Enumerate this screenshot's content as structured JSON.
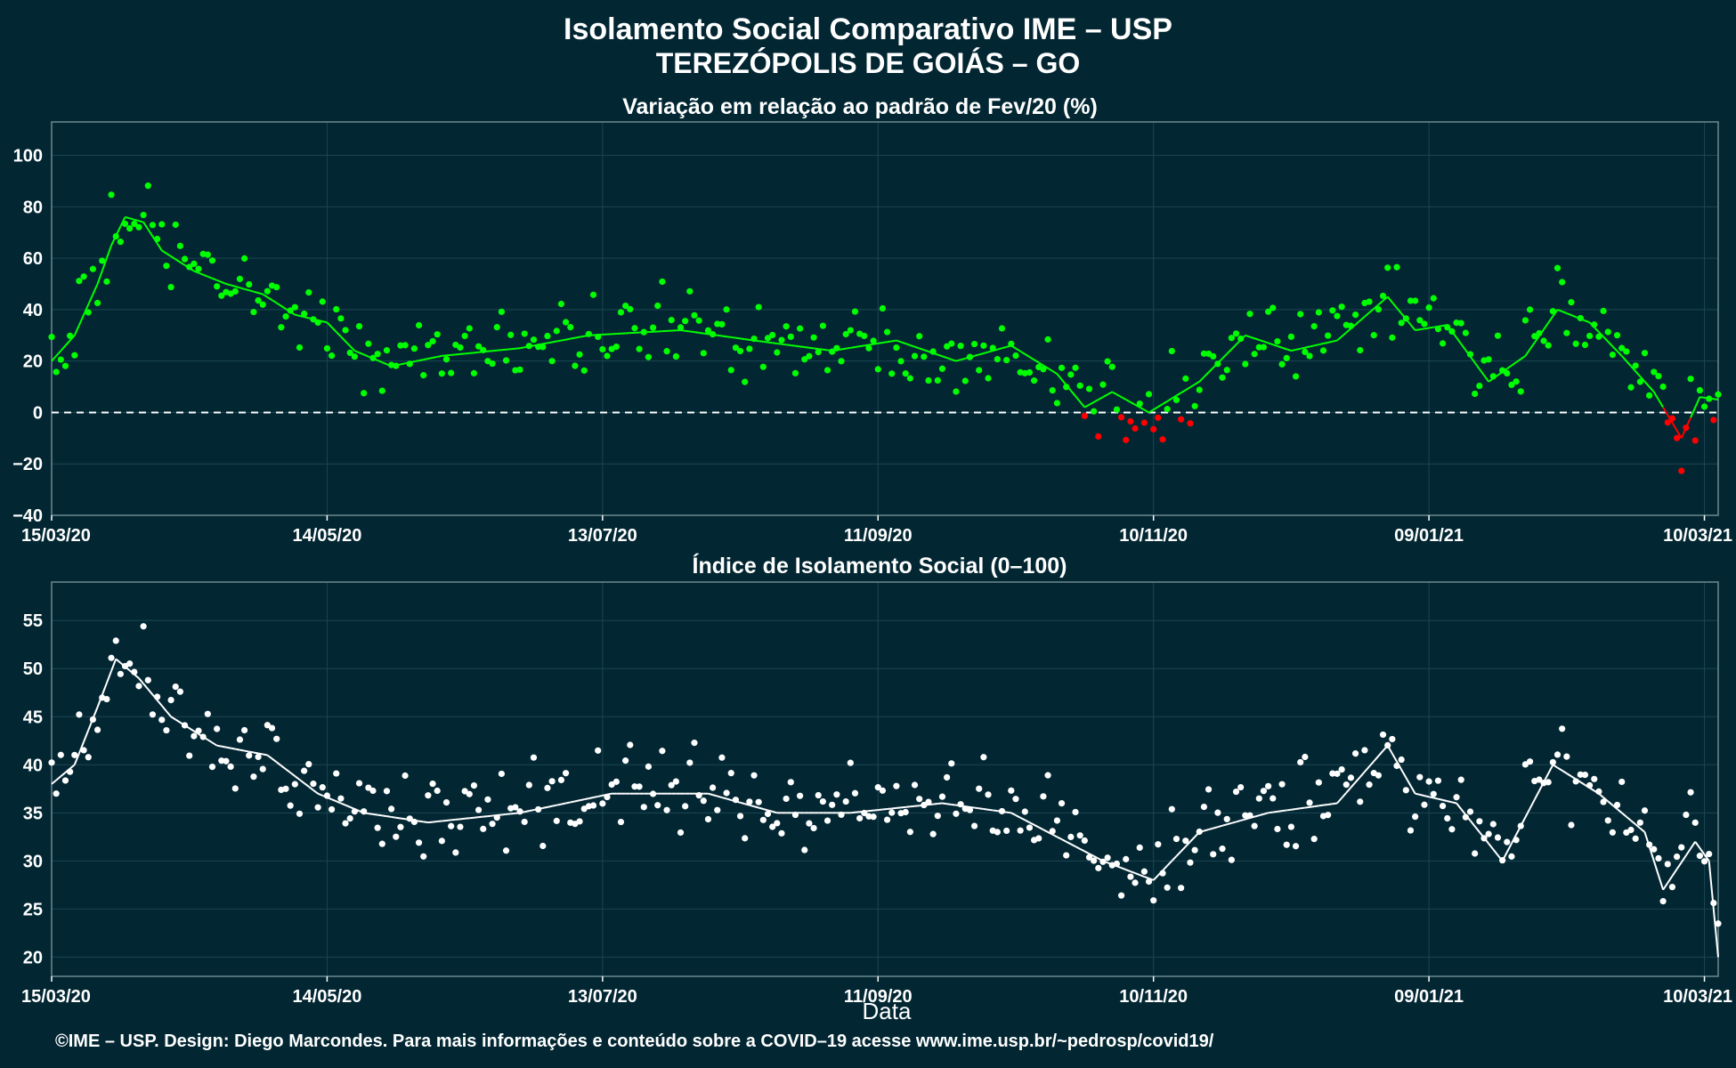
{
  "header": {
    "title": "Isolamento Social Comparativo IME – USP",
    "subtitle": "TEREZÓPOLIS DE GOIÁS – GO"
  },
  "footer": {
    "credit": "©IME – USP. Design: Diego Marcondes. Para mais informações e conteúdo sobre a COVID–19 acesse www.ime.usp.br/~pedrosp/covid19/"
  },
  "colors": {
    "background": "#022733",
    "positive": "#00ff00",
    "negative": "#ff0000",
    "index": "#ffffff",
    "grid": "#1c4552"
  },
  "chart_data": [
    {
      "type": "scatter",
      "title": "Variação em relação ao padrão de Fev/20 (%)",
      "xlabel": "",
      "ylabel": "",
      "x_range": [
        "2020-03-15",
        "2021-03-13"
      ],
      "ylim": [
        -40,
        113
      ],
      "yticks": [
        -40,
        -20,
        0,
        20,
        40,
        60,
        80,
        100
      ],
      "xticks": [
        "15/03/20",
        "14/05/20",
        "13/07/20",
        "11/09/20",
        "10/11/20",
        "09/01/21",
        "10/03/21"
      ],
      "reference_line": 0,
      "grid": true,
      "anchors": [
        [
          "2020-03-15",
          20
        ],
        [
          "2020-03-20",
          30
        ],
        [
          "2020-03-25",
          50
        ],
        [
          "2020-03-28",
          65
        ],
        [
          "2020-03-31",
          76
        ],
        [
          "2020-04-04",
          74
        ],
        [
          "2020-04-08",
          63
        ],
        [
          "2020-04-15",
          55
        ],
        [
          "2020-04-22",
          50
        ],
        [
          "2020-04-30",
          46
        ],
        [
          "2020-05-07",
          38
        ],
        [
          "2020-05-14",
          35
        ],
        [
          "2020-05-20",
          24
        ],
        [
          "2020-05-28",
          18
        ],
        [
          "2020-06-08",
          22
        ],
        [
          "2020-06-25",
          25
        ],
        [
          "2020-07-10",
          30
        ],
        [
          "2020-07-30",
          32
        ],
        [
          "2020-08-15",
          28
        ],
        [
          "2020-09-01",
          24
        ],
        [
          "2020-09-15",
          28
        ],
        [
          "2020-09-28",
          20
        ],
        [
          "2020-10-10",
          26
        ],
        [
          "2020-10-20",
          15
        ],
        [
          "2020-10-26",
          2
        ],
        [
          "2020-11-01",
          8
        ],
        [
          "2020-11-09",
          0
        ],
        [
          "2020-11-20",
          12
        ],
        [
          "2020-11-30",
          30
        ],
        [
          "2020-12-10",
          24
        ],
        [
          "2020-12-20",
          28
        ],
        [
          "2020-12-31",
          45
        ],
        [
          "2021-01-06",
          32
        ],
        [
          "2021-01-13",
          34
        ],
        [
          "2021-01-22",
          12
        ],
        [
          "2021-01-30",
          22
        ],
        [
          "2021-02-06",
          40
        ],
        [
          "2021-02-13",
          35
        ],
        [
          "2021-02-20",
          22
        ],
        [
          "2021-02-27",
          8
        ],
        [
          "2021-03-05",
          -10
        ],
        [
          "2021-03-09",
          6
        ],
        [
          "2021-03-13",
          5
        ]
      ],
      "spread": 20,
      "series": [
        {
          "name": "",
          "color": "#00ff00",
          "rule": "value >= 0"
        },
        {
          "name": "",
          "color": "#ff0000",
          "rule": "value < 0"
        }
      ]
    },
    {
      "type": "scatter",
      "title": "Índice de Isolamento Social (0–100)",
      "xlabel": "Data",
      "ylabel": "",
      "x_range": [
        "2020-03-15",
        "2021-03-13"
      ],
      "ylim": [
        18,
        59
      ],
      "yticks": [
        20,
        25,
        30,
        35,
        40,
        45,
        50,
        55
      ],
      "xticks": [
        "15/03/20",
        "14/05/20",
        "13/07/20",
        "11/09/20",
        "10/11/20",
        "09/01/21",
        "10/03/21"
      ],
      "grid": true,
      "anchors": [
        [
          "2020-03-15",
          38
        ],
        [
          "2020-03-20",
          40
        ],
        [
          "2020-03-25",
          46
        ],
        [
          "2020-03-29",
          51
        ],
        [
          "2020-04-03",
          49
        ],
        [
          "2020-04-10",
          45
        ],
        [
          "2020-04-20",
          42
        ],
        [
          "2020-05-01",
          41
        ],
        [
          "2020-05-12",
          37
        ],
        [
          "2020-05-22",
          35
        ],
        [
          "2020-06-05",
          34
        ],
        [
          "2020-06-25",
          35
        ],
        [
          "2020-07-15",
          37
        ],
        [
          "2020-08-05",
          37
        ],
        [
          "2020-08-20",
          35
        ],
        [
          "2020-09-05",
          35
        ],
        [
          "2020-09-25",
          36
        ],
        [
          "2020-10-10",
          35
        ],
        [
          "2020-10-22",
          32
        ],
        [
          "2020-10-30",
          30
        ],
        [
          "2020-11-10",
          28
        ],
        [
          "2020-11-20",
          33
        ],
        [
          "2020-12-05",
          35
        ],
        [
          "2020-12-20",
          36
        ],
        [
          "2020-12-31",
          42
        ],
        [
          "2021-01-06",
          37
        ],
        [
          "2021-01-15",
          36
        ],
        [
          "2021-01-25",
          30
        ],
        [
          "2021-02-05",
          40
        ],
        [
          "2021-02-15",
          37
        ],
        [
          "2021-02-25",
          33
        ],
        [
          "2021-03-01",
          27
        ],
        [
          "2021-03-08",
          32
        ],
        [
          "2021-03-11",
          30
        ],
        [
          "2021-03-13",
          20
        ]
      ],
      "spread": 6,
      "series": [
        {
          "name": "",
          "color": "#ffffff"
        }
      ]
    }
  ]
}
